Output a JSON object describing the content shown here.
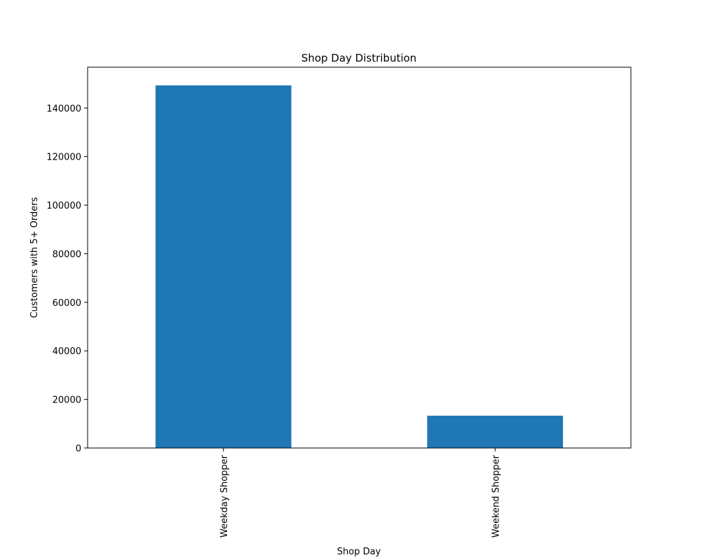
{
  "chart_data": {
    "type": "bar",
    "title": "Shop Day Distribution",
    "xlabel": "Shop Day",
    "ylabel": "Customers with 5+ Orders",
    "categories": [
      "Weekday Shopper",
      "Weekend Shopper"
    ],
    "values": [
      149300,
      13300
    ],
    "ylim": [
      0,
      156800
    ],
    "yticks": [
      0,
      20000,
      40000,
      60000,
      80000,
      100000,
      120000,
      140000
    ],
    "grid": false,
    "legend": "none",
    "colors": {
      "bar": "#1f77b4",
      "axis": "#000000"
    }
  }
}
